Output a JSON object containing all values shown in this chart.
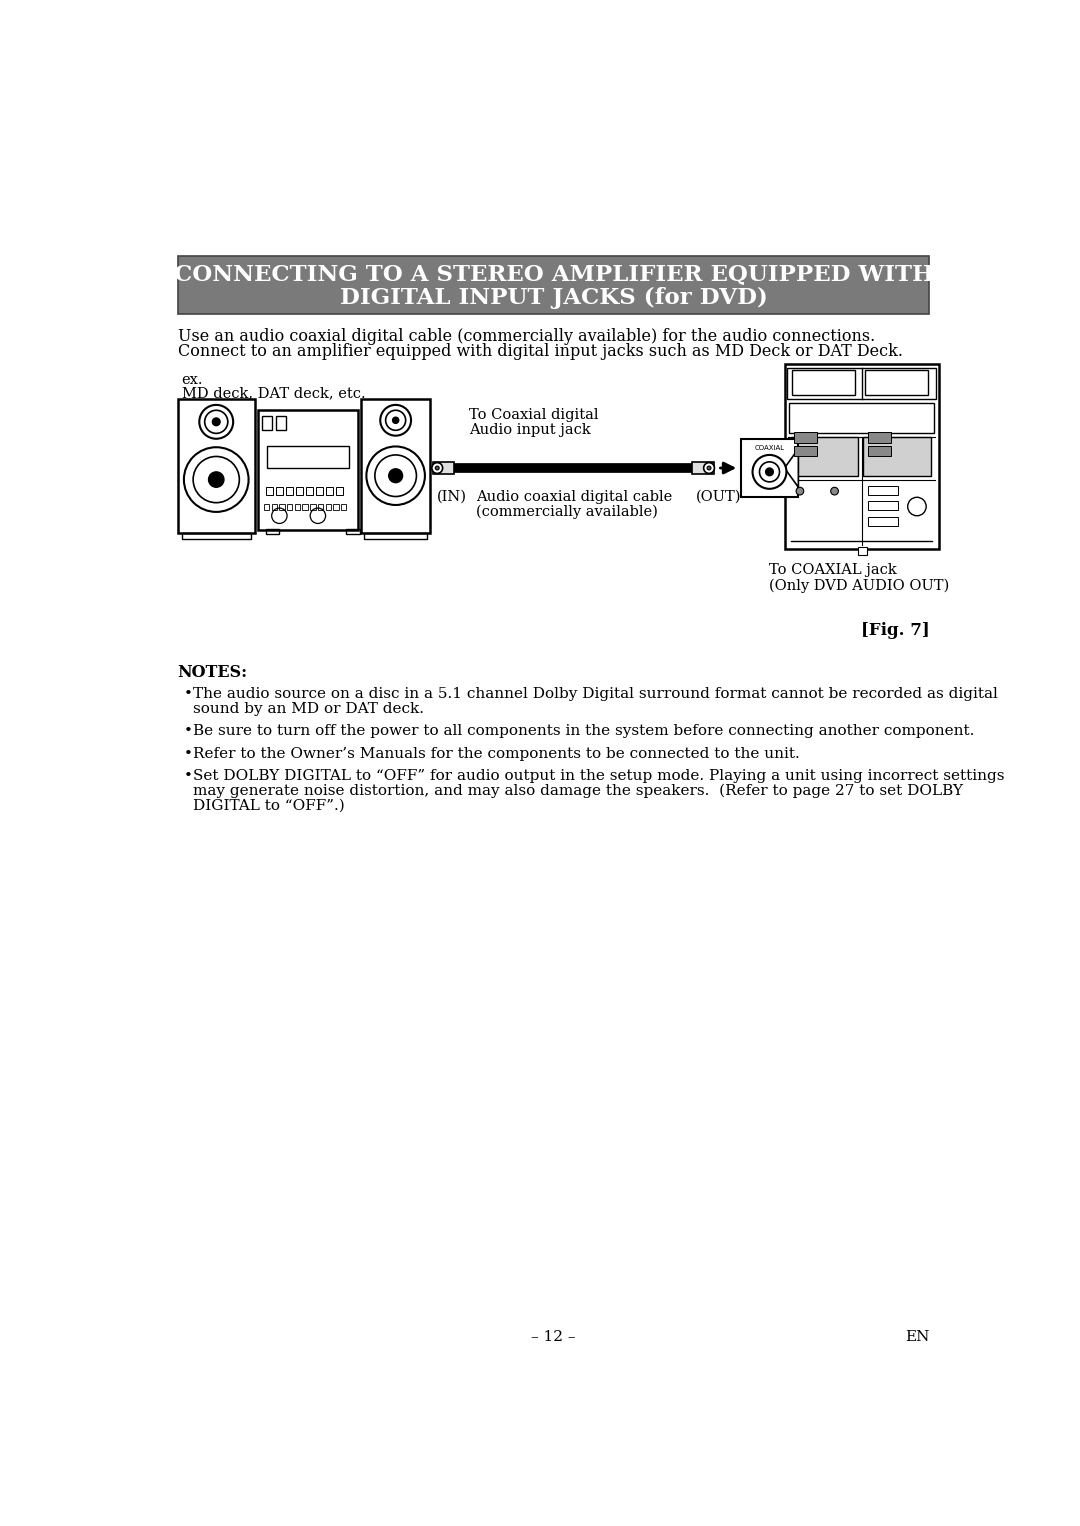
{
  "bg_color": "#ffffff",
  "header_bg": "#7a7a7a",
  "header_text_color": "#ffffff",
  "header_line1": "CONNECTING TO A STEREO AMPLIFIER EQUIPPED WITH",
  "header_line2": "DIGITAL INPUT JACKS (for DVD)",
  "header_fontsize": 16.5,
  "body_text1": "Use an audio coaxial digital cable (commercially available) for the audio connections.",
  "body_text2": "Connect to an amplifier equipped with digital input jacks such as MD Deck or DAT Deck.",
  "body_fontsize": 11.5,
  "ex_label1": "ex.",
  "ex_label2": "MD deck, DAT deck, etc.",
  "label_in": "(IN)",
  "label_out": "(OUT)",
  "label_cable1": "To Coaxial digital",
  "label_cable2": "Audio input jack",
  "label_cable3": "Audio coaxial digital cable",
  "label_cable4": "(commercially available)",
  "label_coaxial1": "To COAXIAL jack",
  "label_coaxial2": "(Only DVD AUDIO OUT)",
  "label_coaxial_small": "COAXIAL",
  "fig_label": "[Fig. 7]",
  "notes_header": "NOTES:",
  "notes": [
    "The audio source on a disc in a 5.1 channel Dolby Digital surround format cannot be recorded as digital\nsound by an MD or DAT deck.",
    "Be sure to turn off the power to all components in the system before connecting another component.",
    "Refer to the Owner’s Manuals for the components to be connected to the unit.",
    "Set DOLBY DIGITAL to “OFF” for audio output in the setup mode. Playing a unit using incorrect settings\nmay generate noise distortion, and may also damage the speakers.  (Refer to page 27 to set DOLBY\nDIGITAL to “OFF”.)"
  ],
  "page_number": "– 12 –",
  "page_en": "EN"
}
